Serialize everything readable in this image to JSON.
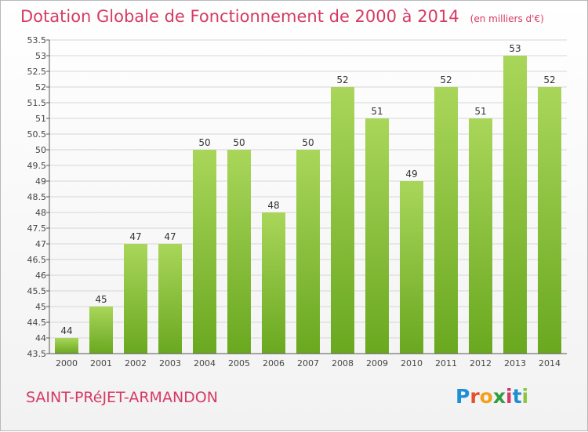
{
  "title": "Dotation Globale de Fonctionnement de 2000 à 2014",
  "subtitle": "(en milliers d'€)",
  "commune": "SAINT-PRéJET-ARMANDON",
  "logo": {
    "letters": [
      "P",
      "r",
      "o",
      "x",
      "i",
      "t",
      "i"
    ],
    "colors": [
      "#1e8fd6",
      "#e8502c",
      "#f2a01c",
      "#2e9e3f",
      "#d63a64",
      "#1e8fd6",
      "#8cc63f"
    ]
  },
  "colors": {
    "bar_light": "#a9d65a",
    "bar_dark": "#6aa820",
    "grid": "#d6d6d6",
    "axis": "#555555",
    "accent": "#d63a64"
  },
  "chart_data": {
    "type": "bar",
    "categories": [
      "2000",
      "2001",
      "2002",
      "2003",
      "2004",
      "2005",
      "2006",
      "2007",
      "2008",
      "2009",
      "2010",
      "2011",
      "2012",
      "2013",
      "2014"
    ],
    "values": [
      44,
      45,
      47,
      47,
      50,
      50,
      48,
      50,
      52,
      51,
      49,
      52,
      51,
      53,
      52
    ],
    "ylim": [
      43.5,
      53.5
    ],
    "yticks": [
      "43.5",
      "44",
      "44.5",
      "45",
      "45.5",
      "46",
      "46.5",
      "47",
      "47.5",
      "48",
      "48.5",
      "49",
      "49.5",
      "50",
      "50.5",
      "51",
      "51.5",
      "52",
      "52.5",
      "53",
      "53.5"
    ],
    "grid": true
  }
}
